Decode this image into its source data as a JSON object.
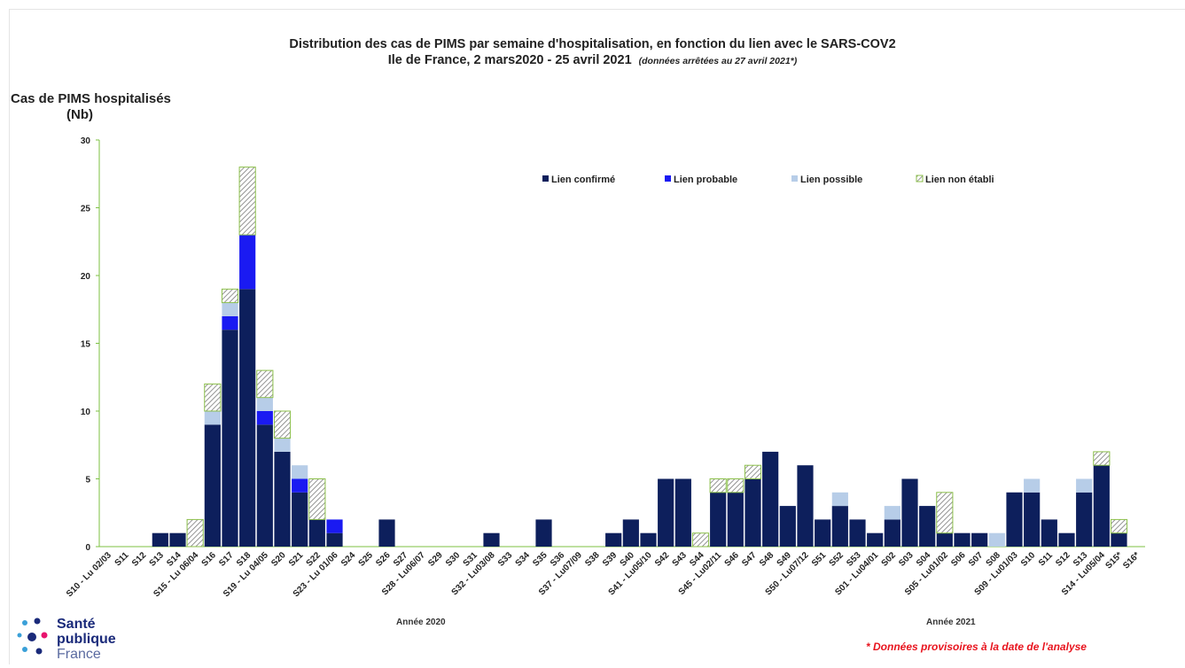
{
  "title_line1": "Distribution des cas de PIMS par semaine d'hospitalisation, en fonction du lien avec le SARS-COV2",
  "title_line2": "Ile de France, 2 mars2020 - 25 avril 2021",
  "title_note": "(données arrêtées au 27 avril 2021*)",
  "ylabel_line1": "Cas de PIMS hospitalisés",
  "ylabel_line2": "(Nb)",
  "year_2020": "Année 2020",
  "year_2021": "Année 2021",
  "footnote": "* Données provisoires à la date de l'analyse",
  "logo": {
    "line1": "Santé",
    "line2": "publique",
    "line3": "France"
  },
  "colors": {
    "confirme": "#0d1f5c",
    "probable": "#1a1af2",
    "possible": "#b7cde8",
    "non_etabli_stroke": "#8cc04a",
    "axis": "#7dc142"
  },
  "chart_data": {
    "type": "bar",
    "stacked": true,
    "ylim": [
      0,
      30
    ],
    "yticks": [
      0,
      5,
      10,
      15,
      20,
      25,
      30
    ],
    "legend_position": "top-right",
    "categories": [
      "S10 - Lu 02/03",
      "S11",
      "S12",
      "S13",
      "S14",
      "S15 - Lu 06/04",
      "S16",
      "S17",
      "S18",
      "S19 - Lu 04/05",
      "S20",
      "S21",
      "S22",
      "S23 - Lu 01/06",
      "S24",
      "S25",
      "S26",
      "S27",
      "S28 - Lu06/07",
      "S29",
      "S30",
      "S31",
      "S32 - Lu03/08",
      "S33",
      "S34",
      "S35",
      "S36",
      "S37 - Lu07/09",
      "S38",
      "S39",
      "S40",
      "S41 - Lu05/10",
      "S42",
      "S43",
      "S44",
      "S45 - Lu02/11",
      "S46",
      "S47",
      "S48",
      "S49",
      "S50 - Lu07/12",
      "S51",
      "S52",
      "S53",
      "S01 - Lu04/01",
      "S02",
      "S03",
      "S04",
      "S05 - Lu01/02",
      "S06",
      "S07",
      "S08",
      "S09 - Lu01/03",
      "S10",
      "S11",
      "S12",
      "S13",
      "S14 - Lu05/04",
      "S15*",
      "S16*"
    ],
    "series": [
      {
        "name": "Lien confirmé",
        "values": [
          0,
          0,
          0,
          1,
          1,
          0,
          9,
          16,
          19,
          9,
          7,
          4,
          2,
          1,
          0,
          0,
          2,
          0,
          0,
          0,
          0,
          0,
          1,
          0,
          0,
          2,
          0,
          0,
          0,
          1,
          2,
          1,
          5,
          5,
          0,
          4,
          4,
          5,
          7,
          3,
          6,
          2,
          3,
          2,
          1,
          2,
          5,
          3,
          1,
          1,
          1,
          0,
          4,
          4,
          2,
          1,
          4,
          6,
          1,
          0
        ]
      },
      {
        "name": "Lien probable",
        "values": [
          0,
          0,
          0,
          0,
          0,
          0,
          0,
          1,
          4,
          1,
          0,
          1,
          0,
          1,
          0,
          0,
          0,
          0,
          0,
          0,
          0,
          0,
          0,
          0,
          0,
          0,
          0,
          0,
          0,
          0,
          0,
          0,
          0,
          0,
          0,
          0,
          0,
          0,
          0,
          0,
          0,
          0,
          0,
          0,
          0,
          0,
          0,
          0,
          0,
          0,
          0,
          0,
          0,
          0,
          0,
          0,
          0,
          0,
          0,
          0
        ]
      },
      {
        "name": "Lien possible",
        "values": [
          0,
          0,
          0,
          0,
          0,
          0,
          1,
          1,
          0,
          1,
          1,
          1,
          0,
          0,
          0,
          0,
          0,
          0,
          0,
          0,
          0,
          0,
          0,
          0,
          0,
          0,
          0,
          0,
          0,
          0,
          0,
          0,
          0,
          0,
          0,
          0,
          0,
          0,
          0,
          0,
          0,
          0,
          1,
          0,
          0,
          1,
          0,
          0,
          0,
          0,
          0,
          1,
          0,
          1,
          0,
          0,
          1,
          0,
          0,
          0
        ]
      },
      {
        "name": "Lien non établi",
        "values": [
          0,
          0,
          0,
          0,
          0,
          2,
          2,
          1,
          5,
          2,
          2,
          0,
          3,
          0,
          0,
          0,
          0,
          0,
          0,
          0,
          0,
          0,
          0,
          0,
          0,
          0,
          0,
          0,
          0,
          0,
          0,
          0,
          0,
          0,
          1,
          1,
          1,
          1,
          0,
          0,
          0,
          0,
          0,
          0,
          0,
          0,
          0,
          0,
          3,
          0,
          0,
          0,
          0,
          0,
          0,
          0,
          0,
          1,
          1,
          0
        ]
      }
    ]
  }
}
